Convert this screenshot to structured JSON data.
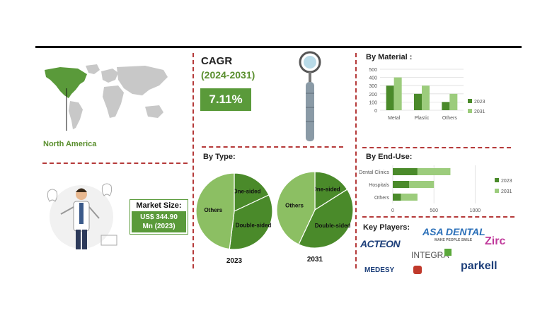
{
  "region": {
    "label": "North America"
  },
  "cagr": {
    "title": "CAGR",
    "period": "(2024-2031)",
    "value": "7.11%"
  },
  "market_size": {
    "label": "Market Size:",
    "value_line1": "US$ 344.90",
    "value_line2": "Mn (2023)"
  },
  "by_type": {
    "title": "By Type:"
  },
  "by_material": {
    "title": "By Material :"
  },
  "by_end_use": {
    "title": "By  End-Use:"
  },
  "key_players": {
    "title": "Key Players:",
    "logos": [
      "ACTEON",
      "ASA DENTAL",
      "MAKE PEOPLE SMILE",
      "Zirc",
      "INTEGRA",
      "MEDESY",
      "parkell"
    ]
  },
  "colors": {
    "dark_green": "#4a8a2a",
    "light_green": "#9ccc7c",
    "pie_light": "#8cbf63",
    "accent_red": "#b53a3a"
  },
  "chart_data": [
    {
      "type": "pie",
      "title": "2023",
      "labels": [
        "One-sided",
        "Double-sided",
        "Others"
      ],
      "values": [
        18,
        34,
        48
      ]
    },
    {
      "type": "pie",
      "title": "2031",
      "labels": [
        "One-sided",
        "Double-sided",
        "Others"
      ],
      "values": [
        16,
        41,
        43
      ]
    },
    {
      "type": "bar",
      "orientation": "vertical",
      "categories": [
        "Metal",
        "Plastic",
        "Others"
      ],
      "series": [
        {
          "name": "2023",
          "values": [
            300,
            200,
            100
          ]
        },
        {
          "name": "2031",
          "values": [
            400,
            300,
            200
          ]
        }
      ],
      "yticks": [
        0,
        100,
        200,
        300,
        400,
        500
      ],
      "ylim": [
        0,
        500
      ],
      "grid": true,
      "legend": "right"
    },
    {
      "type": "bar",
      "orientation": "horizontal",
      "categories": [
        "Dental Clinics",
        "Hospitals",
        "Others"
      ],
      "series": [
        {
          "name": "2023",
          "values": [
            300,
            200,
            100
          ]
        },
        {
          "name": "2031",
          "values": [
            400,
            300,
            200
          ]
        }
      ],
      "xticks": [
        0,
        500,
        1000
      ],
      "xlim": [
        0,
        1100
      ],
      "grid": true,
      "legend": "right",
      "stacked": true
    }
  ]
}
